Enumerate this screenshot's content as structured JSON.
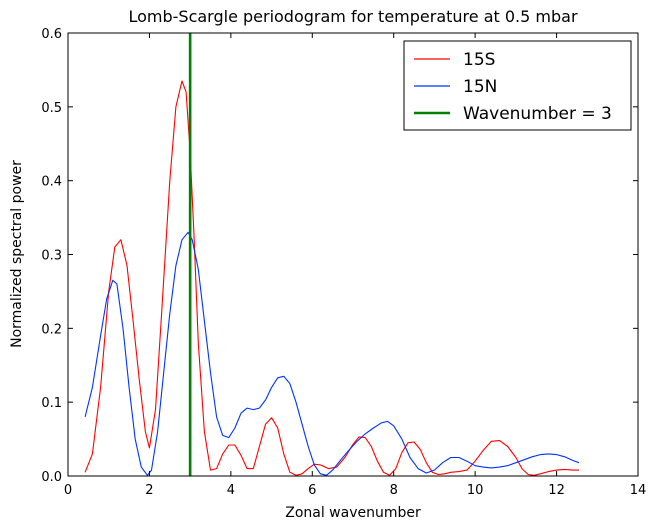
{
  "chart_data": {
    "type": "line",
    "title": "Lomb-Scargle periodogram for temperature at 0.5 mbar",
    "xlabel": "Zonal wavenumber",
    "ylabel": "Normalized spectral power",
    "xlim": [
      0,
      14
    ],
    "ylim": [
      0,
      0.6
    ],
    "xticks": [
      "0",
      "2",
      "4",
      "6",
      "8",
      "10",
      "12",
      "14"
    ],
    "yticks": [
      "0.0",
      "0.1",
      "0.2",
      "0.3",
      "0.4",
      "0.5",
      "0.6"
    ],
    "grid": false,
    "legend_position": "top-right",
    "series": [
      {
        "name": "15S",
        "color": "#ff0000",
        "x": [
          0.42,
          0.6,
          0.8,
          1.0,
          1.15,
          1.3,
          1.45,
          1.6,
          1.75,
          1.9,
          2.0,
          2.15,
          2.3,
          2.5,
          2.65,
          2.8,
          2.9,
          3.0,
          3.1,
          3.2,
          3.35,
          3.5,
          3.65,
          3.8,
          3.95,
          4.1,
          4.25,
          4.4,
          4.55,
          4.7,
          4.85,
          5.0,
          5.15,
          5.3,
          5.45,
          5.6,
          5.75,
          5.9,
          6.05,
          6.2,
          6.4,
          6.6,
          6.8,
          7.0,
          7.15,
          7.3,
          7.45,
          7.6,
          7.75,
          7.9,
          8.05,
          8.2,
          8.35,
          8.5,
          8.65,
          8.8,
          8.95,
          9.1,
          9.25,
          9.4,
          9.6,
          9.8,
          10.0,
          10.2,
          10.4,
          10.6,
          10.8,
          11.0,
          11.15,
          11.3,
          11.45,
          11.6,
          11.8,
          12.0,
          12.2,
          12.4,
          12.55
        ],
        "values": [
          0.005,
          0.03,
          0.12,
          0.25,
          0.31,
          0.32,
          0.285,
          0.21,
          0.13,
          0.06,
          0.038,
          0.09,
          0.22,
          0.4,
          0.5,
          0.535,
          0.52,
          0.44,
          0.32,
          0.18,
          0.06,
          0.008,
          0.01,
          0.03,
          0.042,
          0.042,
          0.028,
          0.01,
          0.01,
          0.04,
          0.07,
          0.079,
          0.065,
          0.03,
          0.005,
          0.001,
          0.003,
          0.01,
          0.016,
          0.015,
          0.01,
          0.012,
          0.025,
          0.043,
          0.053,
          0.052,
          0.04,
          0.02,
          0.005,
          0.001,
          0.01,
          0.032,
          0.045,
          0.046,
          0.036,
          0.018,
          0.005,
          0.002,
          0.003,
          0.005,
          0.006,
          0.008,
          0.02,
          0.035,
          0.047,
          0.048,
          0.04,
          0.025,
          0.01,
          0.002,
          0.001,
          0.003,
          0.006,
          0.008,
          0.009,
          0.008,
          0.008
        ]
      },
      {
        "name": "15N",
        "color": "#0033ff",
        "x": [
          0.42,
          0.6,
          0.8,
          0.95,
          1.1,
          1.2,
          1.35,
          1.5,
          1.65,
          1.8,
          1.95,
          2.05,
          2.2,
          2.35,
          2.5,
          2.65,
          2.8,
          2.95,
          3.05,
          3.2,
          3.35,
          3.5,
          3.65,
          3.8,
          3.95,
          4.1,
          4.25,
          4.4,
          4.55,
          4.7,
          4.85,
          5.0,
          5.15,
          5.3,
          5.45,
          5.6,
          5.75,
          5.9,
          6.05,
          6.2,
          6.35,
          6.5,
          6.7,
          6.9,
          7.1,
          7.3,
          7.5,
          7.7,
          7.85,
          8.0,
          8.2,
          8.4,
          8.6,
          8.8,
          9.0,
          9.2,
          9.4,
          9.6,
          9.8,
          10.0,
          10.2,
          10.4,
          10.6,
          10.8,
          11.0,
          11.2,
          11.4,
          11.6,
          11.8,
          12.0,
          12.2,
          12.4,
          12.55
        ],
        "values": [
          0.08,
          0.12,
          0.19,
          0.24,
          0.265,
          0.26,
          0.2,
          0.12,
          0.05,
          0.012,
          0.001,
          0.008,
          0.06,
          0.14,
          0.22,
          0.285,
          0.32,
          0.33,
          0.32,
          0.28,
          0.21,
          0.14,
          0.08,
          0.055,
          0.052,
          0.065,
          0.085,
          0.092,
          0.09,
          0.092,
          0.103,
          0.12,
          0.133,
          0.135,
          0.125,
          0.1,
          0.07,
          0.04,
          0.015,
          0.003,
          0.001,
          0.008,
          0.022,
          0.035,
          0.047,
          0.057,
          0.065,
          0.072,
          0.074,
          0.068,
          0.05,
          0.025,
          0.01,
          0.004,
          0.008,
          0.018,
          0.025,
          0.025,
          0.02,
          0.014,
          0.012,
          0.011,
          0.012,
          0.014,
          0.018,
          0.022,
          0.026,
          0.029,
          0.03,
          0.029,
          0.026,
          0.021,
          0.018
        ]
      }
    ],
    "vlines": [
      {
        "name": "Wavenumber = 3",
        "x": 3,
        "color": "#008000"
      }
    ]
  }
}
